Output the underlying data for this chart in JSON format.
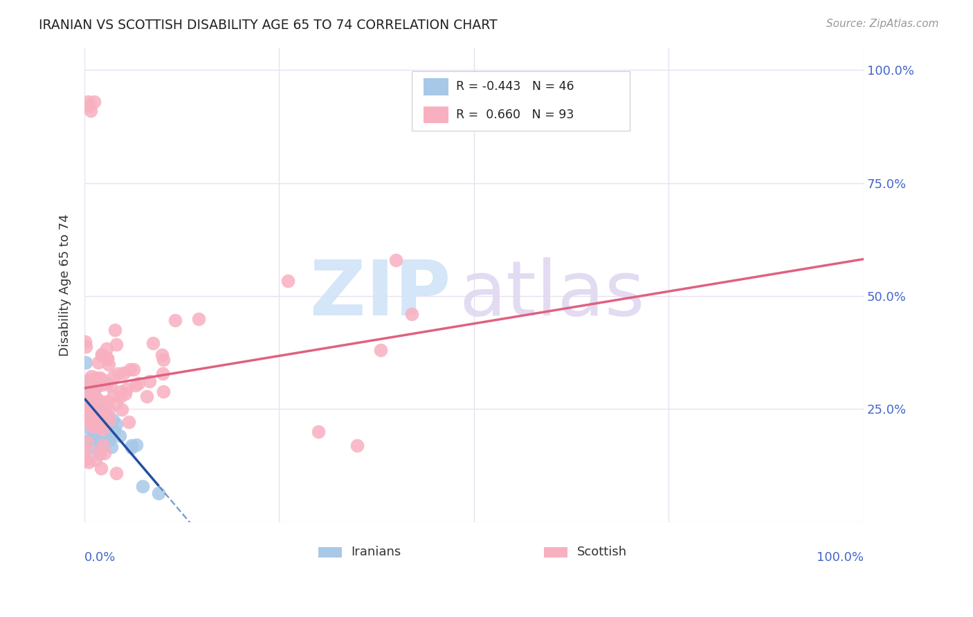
{
  "title": "IRANIAN VS SCOTTISH DISABILITY AGE 65 TO 74 CORRELATION CHART",
  "source": "Source: ZipAtlas.com",
  "ylabel": "Disability Age 65 to 74",
  "legend_iranian_R": "-0.443",
  "legend_iranian_N": "46",
  "legend_scottish_R": "0.660",
  "legend_scottish_N": "93",
  "iranian_color": "#a8c8e8",
  "scottish_color": "#f8b0c0",
  "iranian_line_color": "#2050a0",
  "scottish_line_color": "#e06080",
  "background_color": "#ffffff",
  "grid_color": "#e8e0f0",
  "title_color": "#222222",
  "axis_label_color": "#4466cc",
  "watermark_zip_color": "#d0e4f8",
  "watermark_atlas_color": "#e0d8f0",
  "xlim": [
    0.0,
    1.0
  ],
  "ylim": [
    0.0,
    1.05
  ],
  "yticks": [
    0.0,
    0.25,
    0.5,
    0.75,
    1.0
  ],
  "ytick_labels_right": [
    "",
    "25.0%",
    "50.0%",
    "75.0%",
    "100.0%"
  ]
}
